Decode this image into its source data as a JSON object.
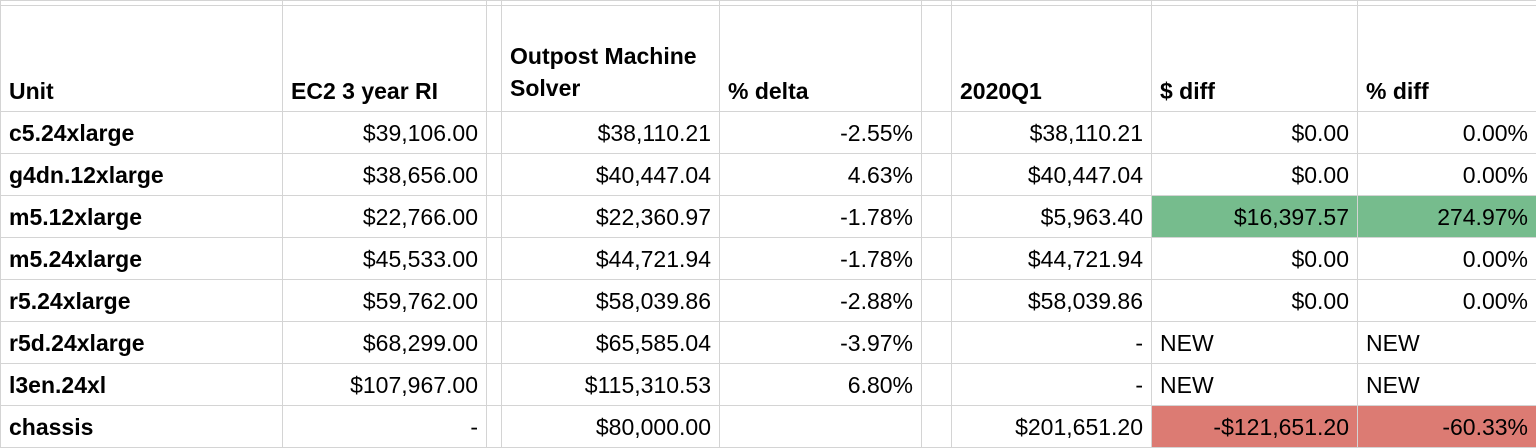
{
  "headers": {
    "unit": "Unit",
    "ec2": "EC2 3 year RI",
    "outpost": "Outpost Machine Solver",
    "pct_delta": "% delta",
    "q1": "2020Q1",
    "dollar_diff": "$ diff",
    "pct_diff": "% diff"
  },
  "colors": {
    "highlight_positive": "#76bc8d",
    "highlight_negative": "#dc7b73",
    "gridline": "#d4d4d4"
  },
  "rows": [
    {
      "unit": "c5.24xlarge",
      "ec2": "$39,106.00",
      "outpost": "$38,110.21",
      "pct_delta": "-2.55%",
      "q1": "$38,110.21",
      "dollar_diff": "$0.00",
      "pct_diff": "0.00%"
    },
    {
      "unit": "g4dn.12xlarge",
      "ec2": "$38,656.00",
      "outpost": "$40,447.04",
      "pct_delta": "4.63%",
      "q1": "$40,447.04",
      "dollar_diff": "$0.00",
      "pct_diff": "0.00%"
    },
    {
      "unit": "m5.12xlarge",
      "ec2": "$22,766.00",
      "outpost": "$22,360.97",
      "pct_delta": "-1.78%",
      "q1": "$5,963.40",
      "dollar_diff": "$16,397.57",
      "pct_diff": "274.97%"
    },
    {
      "unit": "m5.24xlarge",
      "ec2": "$45,533.00",
      "outpost": "$44,721.94",
      "pct_delta": "-1.78%",
      "q1": "$44,721.94",
      "dollar_diff": "$0.00",
      "pct_diff": "0.00%"
    },
    {
      "unit": "r5.24xlarge",
      "ec2": "$59,762.00",
      "outpost": "$58,039.86",
      "pct_delta": "-2.88%",
      "q1": "$58,039.86",
      "dollar_diff": "$0.00",
      "pct_diff": "0.00%"
    },
    {
      "unit": "r5d.24xlarge",
      "ec2": "$68,299.00",
      "outpost": "$65,585.04",
      "pct_delta": "-3.97%",
      "q1": "-",
      "dollar_diff": "NEW",
      "pct_diff": "NEW"
    },
    {
      "unit": "l3en.24xl",
      "ec2": "$107,967.00",
      "outpost": "$115,310.53",
      "pct_delta": "6.80%",
      "q1": "-",
      "dollar_diff": "NEW",
      "pct_diff": "NEW"
    },
    {
      "unit": "chassis",
      "ec2": "-",
      "outpost": "$80,000.00",
      "pct_delta": "",
      "q1": "$201,651.20",
      "dollar_diff": "-$121,651.20",
      "pct_diff": "-60.33%"
    }
  ]
}
